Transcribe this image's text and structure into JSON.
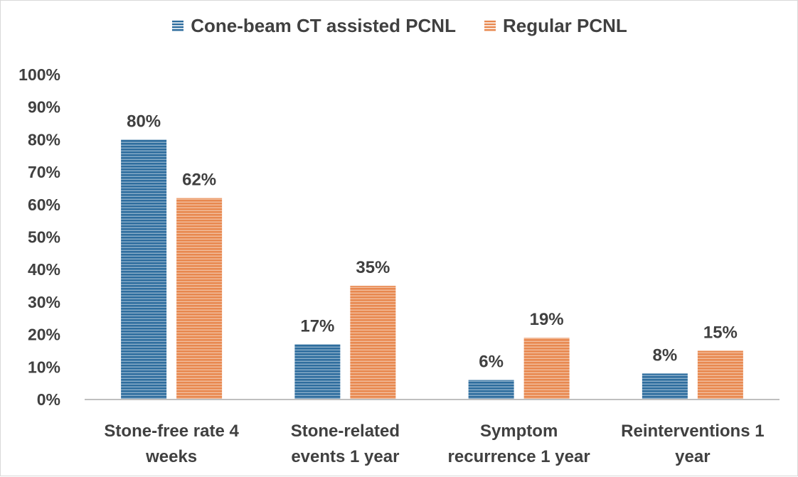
{
  "chart_data": {
    "type": "bar",
    "title": "",
    "xlabel": "",
    "ylabel": "",
    "ylim": [
      0,
      100
    ],
    "yticks": [
      "0%",
      "10%",
      "20%",
      "30%",
      "40%",
      "50%",
      "60%",
      "70%",
      "80%",
      "90%",
      "100%"
    ],
    "categories": [
      [
        "Stone-free rate 4",
        "weeks"
      ],
      [
        "Stone-related",
        "events 1 year"
      ],
      [
        "Symptom",
        "recurrence 1 year"
      ],
      [
        "Reinterventions 1",
        "year"
      ]
    ],
    "series": [
      {
        "name": "Cone-beam CT assisted PCNL",
        "color": "#2e6d9e",
        "values": [
          80,
          17,
          6,
          8
        ],
        "labels": [
          "80%",
          "17%",
          "6%",
          "8%"
        ]
      },
      {
        "name": "Regular PCNL",
        "color": "#e8884f",
        "values": [
          62,
          35,
          19,
          15
        ],
        "labels": [
          "62%",
          "35%",
          "19%",
          "15%"
        ]
      }
    ],
    "legend_position": "top-center",
    "grid": false
  }
}
